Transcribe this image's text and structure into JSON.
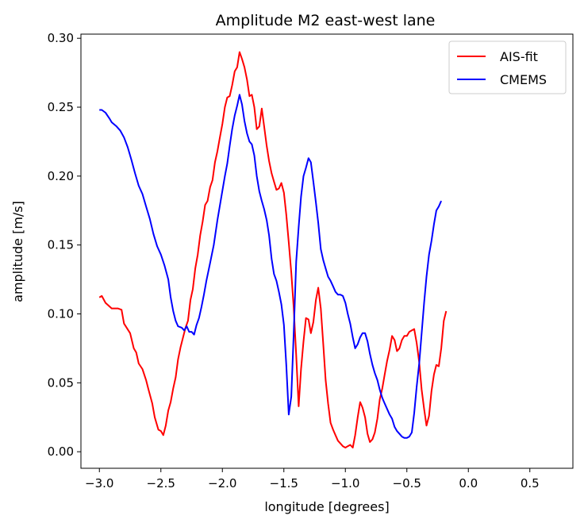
{
  "chart_data": {
    "type": "line",
    "title": "Amplitude M2 east-west lane",
    "xlabel": "longitude [degrees]",
    "ylabel": "amplitude [m/s]",
    "xlim": [
      -3.15,
      0.85
    ],
    "ylim": [
      -0.012,
      0.303
    ],
    "xticks": [
      -3.0,
      -2.5,
      -2.0,
      -1.5,
      -1.0,
      -0.5,
      0.0,
      0.5
    ],
    "xtick_labels": [
      "−3.0",
      "−2.5",
      "−2.0",
      "−1.5",
      "−1.0",
      "−0.5",
      "0.0",
      "0.5"
    ],
    "yticks": [
      0.0,
      0.05,
      0.1,
      0.15,
      0.2,
      0.25,
      0.3
    ],
    "ytick_labels": [
      "0.00",
      "0.05",
      "0.10",
      "0.15",
      "0.20",
      "0.25",
      "0.30"
    ],
    "grid": false,
    "legend_position": "top-right",
    "series": [
      {
        "name": "AIS-fit",
        "color": "#ff0000",
        "points": [
          [
            -3.0,
            0.112
          ],
          [
            -2.98,
            0.113
          ],
          [
            -2.95,
            0.108
          ],
          [
            -2.9,
            0.104
          ],
          [
            -2.85,
            0.104
          ],
          [
            -2.82,
            0.103
          ],
          [
            -2.8,
            0.093
          ],
          [
            -2.75,
            0.086
          ],
          [
            -2.72,
            0.075
          ],
          [
            -2.7,
            0.072
          ],
          [
            -2.68,
            0.064
          ],
          [
            -2.65,
            0.06
          ],
          [
            -2.62,
            0.052
          ],
          [
            -2.6,
            0.045
          ],
          [
            -2.57,
            0.035
          ],
          [
            -2.55,
            0.025
          ],
          [
            -2.52,
            0.016
          ],
          [
            -2.5,
            0.015
          ],
          [
            -2.48,
            0.012
          ],
          [
            -2.46,
            0.019
          ],
          [
            -2.44,
            0.03
          ],
          [
            -2.42,
            0.036
          ],
          [
            -2.4,
            0.046
          ],
          [
            -2.38,
            0.054
          ],
          [
            -2.36,
            0.067
          ],
          [
            -2.34,
            0.076
          ],
          [
            -2.3,
            0.09
          ],
          [
            -2.28,
            0.095
          ],
          [
            -2.26,
            0.11
          ],
          [
            -2.24,
            0.118
          ],
          [
            -2.22,
            0.133
          ],
          [
            -2.2,
            0.143
          ],
          [
            -2.18,
            0.157
          ],
          [
            -2.16,
            0.167
          ],
          [
            -2.14,
            0.179
          ],
          [
            -2.12,
            0.182
          ],
          [
            -2.1,
            0.192
          ],
          [
            -2.08,
            0.197
          ],
          [
            -2.06,
            0.21
          ],
          [
            -2.04,
            0.218
          ],
          [
            -2.02,
            0.228
          ],
          [
            -2.0,
            0.238
          ],
          [
            -1.98,
            0.25
          ],
          [
            -1.96,
            0.257
          ],
          [
            -1.94,
            0.258
          ],
          [
            -1.92,
            0.266
          ],
          [
            -1.9,
            0.276
          ],
          [
            -1.88,
            0.279
          ],
          [
            -1.86,
            0.29
          ],
          [
            -1.84,
            0.285
          ],
          [
            -1.82,
            0.279
          ],
          [
            -1.8,
            0.27
          ],
          [
            -1.78,
            0.258
          ],
          [
            -1.76,
            0.259
          ],
          [
            -1.74,
            0.25
          ],
          [
            -1.72,
            0.234
          ],
          [
            -1.7,
            0.236
          ],
          [
            -1.68,
            0.249
          ],
          [
            -1.66,
            0.236
          ],
          [
            -1.64,
            0.222
          ],
          [
            -1.62,
            0.211
          ],
          [
            -1.6,
            0.202
          ],
          [
            -1.58,
            0.196
          ],
          [
            -1.56,
            0.19
          ],
          [
            -1.54,
            0.191
          ],
          [
            -1.52,
            0.195
          ],
          [
            -1.5,
            0.188
          ],
          [
            -1.48,
            0.172
          ],
          [
            -1.46,
            0.152
          ],
          [
            -1.44,
            0.13
          ],
          [
            -1.42,
            0.105
          ],
          [
            -1.4,
            0.07
          ],
          [
            -1.38,
            0.033
          ],
          [
            -1.36,
            0.06
          ],
          [
            -1.34,
            0.08
          ],
          [
            -1.32,
            0.097
          ],
          [
            -1.3,
            0.096
          ],
          [
            -1.28,
            0.086
          ],
          [
            -1.26,
            0.094
          ],
          [
            -1.24,
            0.11
          ],
          [
            -1.22,
            0.119
          ],
          [
            -1.2,
            0.104
          ],
          [
            -1.18,
            0.078
          ],
          [
            -1.16,
            0.052
          ],
          [
            -1.14,
            0.035
          ],
          [
            -1.12,
            0.021
          ],
          [
            -1.1,
            0.016
          ],
          [
            -1.08,
            0.012
          ],
          [
            -1.06,
            0.008
          ],
          [
            -1.04,
            0.006
          ],
          [
            -1.02,
            0.004
          ],
          [
            -1.0,
            0.003
          ],
          [
            -0.98,
            0.004
          ],
          [
            -0.96,
            0.005
          ],
          [
            -0.94,
            0.003
          ],
          [
            -0.92,
            0.012
          ],
          [
            -0.9,
            0.025
          ],
          [
            -0.88,
            0.036
          ],
          [
            -0.86,
            0.032
          ],
          [
            -0.84,
            0.025
          ],
          [
            -0.82,
            0.013
          ],
          [
            -0.8,
            0.007
          ],
          [
            -0.78,
            0.009
          ],
          [
            -0.76,
            0.014
          ],
          [
            -0.74,
            0.024
          ],
          [
            -0.72,
            0.038
          ],
          [
            -0.7,
            0.046
          ],
          [
            -0.68,
            0.056
          ],
          [
            -0.66,
            0.066
          ],
          [
            -0.64,
            0.074
          ],
          [
            -0.62,
            0.084
          ],
          [
            -0.6,
            0.081
          ],
          [
            -0.58,
            0.073
          ],
          [
            -0.56,
            0.075
          ],
          [
            -0.54,
            0.081
          ],
          [
            -0.52,
            0.084
          ],
          [
            -0.5,
            0.084
          ],
          [
            -0.48,
            0.087
          ],
          [
            -0.46,
            0.088
          ],
          [
            -0.44,
            0.089
          ],
          [
            -0.42,
            0.079
          ],
          [
            -0.4,
            0.065
          ],
          [
            -0.38,
            0.045
          ],
          [
            -0.36,
            0.031
          ],
          [
            -0.34,
            0.019
          ],
          [
            -0.32,
            0.026
          ],
          [
            -0.3,
            0.044
          ],
          [
            -0.28,
            0.056
          ],
          [
            -0.26,
            0.063
          ],
          [
            -0.24,
            0.062
          ],
          [
            -0.22,
            0.075
          ],
          [
            -0.2,
            0.095
          ],
          [
            -0.18,
            0.102
          ]
        ]
      },
      {
        "name": "CMEMS",
        "color": "#0000ff",
        "points": [
          [
            -3.0,
            0.248
          ],
          [
            -2.98,
            0.248
          ],
          [
            -2.95,
            0.246
          ],
          [
            -2.92,
            0.242
          ],
          [
            -2.9,
            0.239
          ],
          [
            -2.86,
            0.236
          ],
          [
            -2.83,
            0.233
          ],
          [
            -2.8,
            0.228
          ],
          [
            -2.77,
            0.221
          ],
          [
            -2.74,
            0.212
          ],
          [
            -2.71,
            0.202
          ],
          [
            -2.68,
            0.193
          ],
          [
            -2.65,
            0.187
          ],
          [
            -2.62,
            0.178
          ],
          [
            -2.59,
            0.169
          ],
          [
            -2.56,
            0.158
          ],
          [
            -2.53,
            0.149
          ],
          [
            -2.5,
            0.143
          ],
          [
            -2.47,
            0.135
          ],
          [
            -2.44,
            0.125
          ],
          [
            -2.42,
            0.112
          ],
          [
            -2.4,
            0.102
          ],
          [
            -2.38,
            0.095
          ],
          [
            -2.36,
            0.091
          ],
          [
            -2.33,
            0.09
          ],
          [
            -2.31,
            0.088
          ],
          [
            -2.29,
            0.091
          ],
          [
            -2.27,
            0.087
          ],
          [
            -2.25,
            0.087
          ],
          [
            -2.23,
            0.085
          ],
          [
            -2.21,
            0.092
          ],
          [
            -2.19,
            0.097
          ],
          [
            -2.17,
            0.105
          ],
          [
            -2.15,
            0.114
          ],
          [
            -2.13,
            0.124
          ],
          [
            -2.1,
            0.137
          ],
          [
            -2.07,
            0.15
          ],
          [
            -2.04,
            0.168
          ],
          [
            -2.01,
            0.184
          ],
          [
            -1.98,
            0.2
          ],
          [
            -1.96,
            0.209
          ],
          [
            -1.94,
            0.222
          ],
          [
            -1.92,
            0.234
          ],
          [
            -1.9,
            0.244
          ],
          [
            -1.88,
            0.251
          ],
          [
            -1.86,
            0.259
          ],
          [
            -1.84,
            0.252
          ],
          [
            -1.82,
            0.24
          ],
          [
            -1.8,
            0.231
          ],
          [
            -1.78,
            0.225
          ],
          [
            -1.76,
            0.223
          ],
          [
            -1.74,
            0.215
          ],
          [
            -1.72,
            0.2
          ],
          [
            -1.7,
            0.189
          ],
          [
            -1.68,
            0.182
          ],
          [
            -1.66,
            0.176
          ],
          [
            -1.64,
            0.168
          ],
          [
            -1.62,
            0.157
          ],
          [
            -1.6,
            0.14
          ],
          [
            -1.58,
            0.129
          ],
          [
            -1.56,
            0.124
          ],
          [
            -1.54,
            0.116
          ],
          [
            -1.52,
            0.107
          ],
          [
            -1.5,
            0.092
          ],
          [
            -1.48,
            0.063
          ],
          [
            -1.46,
            0.027
          ],
          [
            -1.44,
            0.04
          ],
          [
            -1.42,
            0.085
          ],
          [
            -1.4,
            0.138
          ],
          [
            -1.38,
            0.163
          ],
          [
            -1.36,
            0.185
          ],
          [
            -1.34,
            0.2
          ],
          [
            -1.32,
            0.206
          ],
          [
            -1.3,
            0.213
          ],
          [
            -1.28,
            0.21
          ],
          [
            -1.26,
            0.196
          ],
          [
            -1.24,
            0.181
          ],
          [
            -1.22,
            0.166
          ],
          [
            -1.2,
            0.147
          ],
          [
            -1.18,
            0.139
          ],
          [
            -1.16,
            0.133
          ],
          [
            -1.14,
            0.127
          ],
          [
            -1.12,
            0.124
          ],
          [
            -1.1,
            0.12
          ],
          [
            -1.08,
            0.116
          ],
          [
            -1.06,
            0.114
          ],
          [
            -1.04,
            0.114
          ],
          [
            -1.02,
            0.113
          ],
          [
            -1.0,
            0.108
          ],
          [
            -0.98,
            0.1
          ],
          [
            -0.96,
            0.093
          ],
          [
            -0.94,
            0.083
          ],
          [
            -0.92,
            0.075
          ],
          [
            -0.9,
            0.078
          ],
          [
            -0.88,
            0.083
          ],
          [
            -0.86,
            0.086
          ],
          [
            -0.84,
            0.086
          ],
          [
            -0.82,
            0.08
          ],
          [
            -0.8,
            0.071
          ],
          [
            -0.78,
            0.063
          ],
          [
            -0.76,
            0.057
          ],
          [
            -0.74,
            0.052
          ],
          [
            -0.72,
            0.045
          ],
          [
            -0.7,
            0.039
          ],
          [
            -0.68,
            0.035
          ],
          [
            -0.66,
            0.031
          ],
          [
            -0.64,
            0.027
          ],
          [
            -0.62,
            0.024
          ],
          [
            -0.6,
            0.018
          ],
          [
            -0.58,
            0.015
          ],
          [
            -0.56,
            0.013
          ],
          [
            -0.54,
            0.011
          ],
          [
            -0.52,
            0.01
          ],
          [
            -0.5,
            0.01
          ],
          [
            -0.48,
            0.011
          ],
          [
            -0.46,
            0.014
          ],
          [
            -0.44,
            0.028
          ],
          [
            -0.42,
            0.047
          ],
          [
            -0.4,
            0.064
          ],
          [
            -0.38,
            0.086
          ],
          [
            -0.36,
            0.108
          ],
          [
            -0.34,
            0.127
          ],
          [
            -0.32,
            0.143
          ],
          [
            -0.3,
            0.153
          ],
          [
            -0.28,
            0.165
          ],
          [
            -0.26,
            0.175
          ],
          [
            -0.24,
            0.178
          ],
          [
            -0.22,
            0.182
          ]
        ]
      }
    ]
  }
}
